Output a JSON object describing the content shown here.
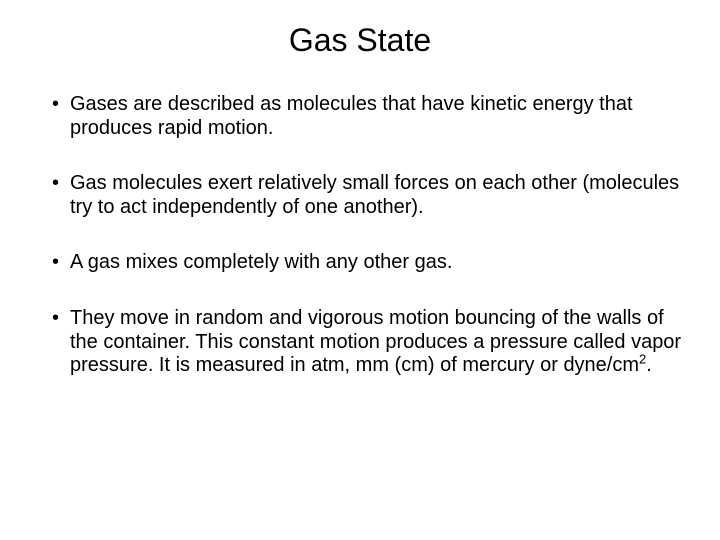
{
  "slide": {
    "title": "Gas State",
    "title_fontsize": 32,
    "body_fontsize": 20,
    "background_color": "#ffffff",
    "text_color": "#000000",
    "bullets": [
      {
        "text": "Gases are described as molecules that have kinetic energy that produces rapid motion."
      },
      {
        "text": "Gas molecules exert relatively small forces on each other (molecules try to act independently of one another)."
      },
      {
        "text": "A gas mixes completely with any other gas."
      },
      {
        "text_pre": "They move in random and vigorous motion bouncing of the walls of the container. This constant motion produces a pressure called vapor pressure. It is measured in atm, mm (cm) of mercury or dyne/cm",
        "sup": "2",
        "text_post": "."
      }
    ]
  }
}
